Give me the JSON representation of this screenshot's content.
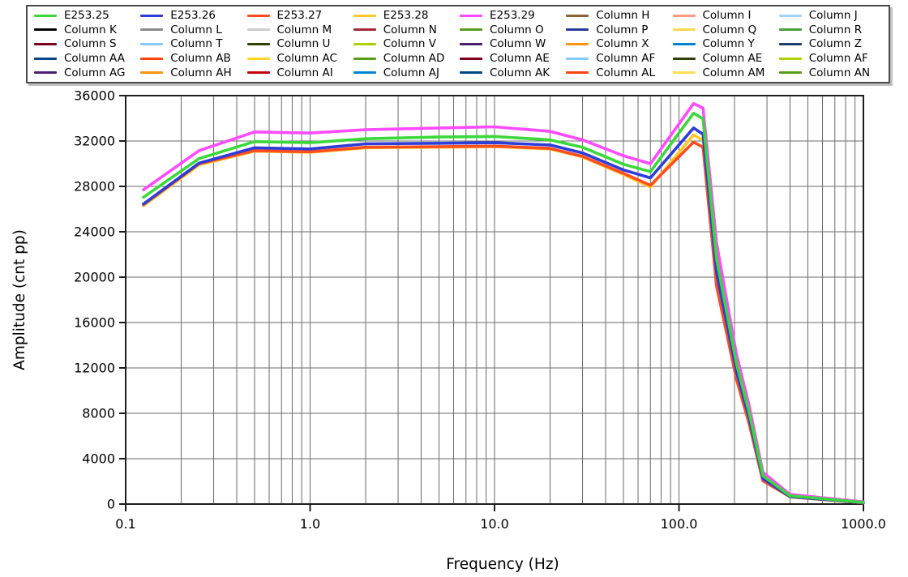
{
  "chart": {
    "x_axis": {
      "title": "Frequency (Hz)",
      "scale": "log",
      "min": 0.1,
      "max": 1000,
      "tick_values": [
        0.1,
        1,
        10,
        100,
        1000
      ],
      "tick_labels": [
        "0.1",
        "1.0",
        "10.0",
        "100.0",
        "1000.0"
      ]
    },
    "y_axis": {
      "title": "Amplitude (cnt pp)",
      "min": 0,
      "max": 36000,
      "tick_step": 4000,
      "tick_labels": [
        "0",
        "4000",
        "8000",
        "12000",
        "16000",
        "20000",
        "24000",
        "28000",
        "32000",
        "36000"
      ]
    },
    "legend": {
      "rows": 5,
      "columns": 8,
      "entries": [
        {
          "label": "E253.25",
          "color": "#3bd83b"
        },
        {
          "label": "E253.26",
          "color": "#2e3cd8"
        },
        {
          "label": "E253.27",
          "color": "#ff4d1f"
        },
        {
          "label": "E253.28",
          "color": "#ffc926"
        },
        {
          "label": "E253.29",
          "color": "#ff4aff"
        },
        {
          "label": "Column H",
          "color": "#8b6236"
        },
        {
          "label": "Column I",
          "color": "#ff9980"
        },
        {
          "label": "Column J",
          "color": "#a6d2f4"
        },
        {
          "label": "Column K",
          "color": "#000000"
        },
        {
          "label": "Column L",
          "color": "#8a8a8a"
        },
        {
          "label": "Column M",
          "color": "#cccccc"
        },
        {
          "label": "Column N",
          "color": "#a52639"
        },
        {
          "label": "Column O",
          "color": "#579d1c"
        },
        {
          "label": "Column P",
          "color": "#28389e"
        },
        {
          "label": "Column Q",
          "color": "#ffd84d"
        },
        {
          "label": "Column R",
          "color": "#44a038"
        },
        {
          "label": "Column S",
          "color": "#7e0021"
        },
        {
          "label": "Column T",
          "color": "#83caff"
        },
        {
          "label": "Column U",
          "color": "#314004"
        },
        {
          "label": "Column V",
          "color": "#aecf00"
        },
        {
          "label": "Column W",
          "color": "#4b1f6f"
        },
        {
          "label": "Column X",
          "color": "#ff950e"
        },
        {
          "label": "Column Y",
          "color": "#0084d1"
        },
        {
          "label": "Column Z",
          "color": "#1e3c72"
        },
        {
          "label": "Column AA",
          "color": "#004586"
        },
        {
          "label": "Column AB",
          "color": "#ff420e"
        },
        {
          "label": "Column AC",
          "color": "#ffd320"
        },
        {
          "label": "Column AD",
          "color": "#579d1c"
        },
        {
          "label": "Column AE",
          "color": "#7e0021"
        },
        {
          "label": "Column AF",
          "color": "#83caff"
        },
        {
          "label": "Column AE",
          "color": "#314004"
        },
        {
          "label": "Column AF",
          "color": "#aecf00"
        },
        {
          "label": "Column AG",
          "color": "#4b1f6f"
        },
        {
          "label": "Column AH",
          "color": "#ff950e"
        },
        {
          "label": "Column AI",
          "color": "#c5000b"
        },
        {
          "label": "Column AJ",
          "color": "#0084d1"
        },
        {
          "label": "Column AK",
          "color": "#004586"
        },
        {
          "label": "Column AL",
          "color": "#ff420e"
        },
        {
          "label": "Column AM",
          "color": "#ffdd55"
        },
        {
          "label": "Column AN",
          "color": "#579d1c"
        }
      ]
    }
  },
  "chart_data": {
    "type": "line",
    "title": "",
    "xlabel": "Frequency (Hz)",
    "ylabel": "Amplitude (cnt pp)",
    "x_scale": "log",
    "xlim": [
      0.1,
      1000
    ],
    "ylim": [
      0,
      36000
    ],
    "grid": "major and minor log gridlines, gray, full plot box",
    "legend_position": "top",
    "x": [
      0.125,
      0.25,
      0.5,
      1,
      2,
      5,
      10,
      20,
      30,
      50,
      70,
      120,
      135,
      160,
      185,
      205,
      240,
      285,
      400,
      1000
    ],
    "series": [
      {
        "name": "E253.25",
        "color": "#3bd83b",
        "values": [
          27050,
          30450,
          31950,
          31850,
          32200,
          32350,
          32400,
          32100,
          31450,
          29950,
          29300,
          34450,
          33950,
          21600,
          16200,
          12400,
          8100,
          2500,
          730,
          150
        ]
      },
      {
        "name": "E253.26",
        "color": "#2e3cd8",
        "values": [
          26450,
          30050,
          31400,
          31300,
          31750,
          31800,
          31850,
          31650,
          30950,
          29450,
          28750,
          33150,
          32600,
          20400,
          15300,
          11700,
          7600,
          2250,
          660,
          120
        ]
      },
      {
        "name": "E253.27",
        "color": "#ff4d1f",
        "values": [
          26400,
          30000,
          31150,
          31050,
          31450,
          31500,
          31550,
          31350,
          30650,
          29150,
          28100,
          31900,
          31450,
          19200,
          14400,
          11000,
          7100,
          2050,
          640,
          110
        ]
      },
      {
        "name": "E253.28",
        "color": "#ffc926",
        "values": [
          26300,
          29900,
          31100,
          31000,
          31400,
          31450,
          31500,
          31300,
          30600,
          29050,
          27950,
          32550,
          32050,
          19600,
          14700,
          11200,
          7250,
          2100,
          630,
          105
        ]
      },
      {
        "name": "E253.29",
        "color": "#ff4aff",
        "values": [
          27700,
          31150,
          32800,
          32700,
          33000,
          33150,
          33250,
          32850,
          32100,
          30700,
          30000,
          35300,
          34900,
          23000,
          17200,
          13200,
          8700,
          2800,
          850,
          190
        ]
      }
    ],
    "draw_order": "reversed — E253.29 drawn first, E253.25 drawn last (on top); the 35 Column legend series have no plotted data"
  }
}
